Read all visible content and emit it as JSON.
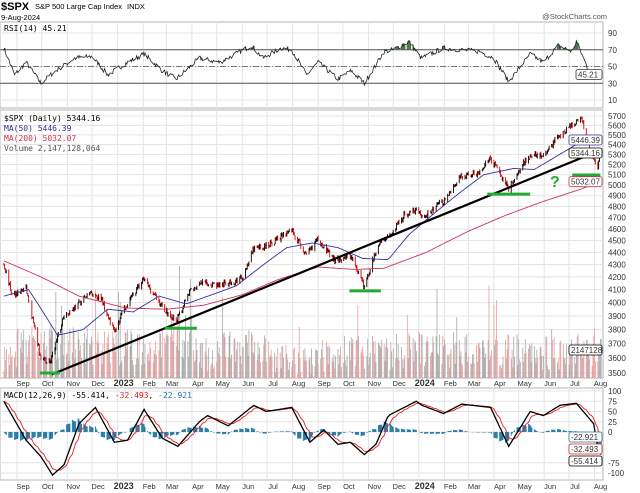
{
  "header": {
    "symbol": "$SPX",
    "name": "S&P 500 Large Cap Index",
    "exchange": "INDX",
    "date": "9-Aug-2024",
    "credit": "@StockCharts.com"
  },
  "colors": {
    "price_up": "#000000",
    "price_down": "#cc0000",
    "ma50": "#333399",
    "ma200": "#cc3355",
    "volume_up": "#a8a8a8",
    "volume_down": "#e8a0a0",
    "rsi_overbought_fill": "#4a7a4a",
    "macd": "#000000",
    "signal": "#e02020",
    "histogram": "#1f77a4",
    "annotation": "#22aa33",
    "trendline": "#000000"
  },
  "chart_data": [
    {
      "type": "line",
      "panel": "rsi",
      "legend": "RSI(14) 45.21",
      "last_value_tag": "45.21",
      "ylim": [
        0,
        100
      ],
      "y_ticks": [
        "90",
        "70",
        "50",
        "30",
        "10"
      ],
      "levels": [
        70,
        50,
        30
      ],
      "points": [
        [
          "2022-08-16",
          72
        ],
        [
          "2022-08-29",
          40
        ],
        [
          "2022-09-12",
          55
        ],
        [
          "2022-09-30",
          30
        ],
        [
          "2022-10-14",
          42
        ],
        [
          "2022-11-10",
          60
        ],
        [
          "2022-12-01",
          62
        ],
        [
          "2022-12-20",
          40
        ],
        [
          "2023-01-13",
          55
        ],
        [
          "2023-02-02",
          65
        ],
        [
          "2023-02-24",
          45
        ],
        [
          "2023-03-13",
          35
        ],
        [
          "2023-04-10",
          60
        ],
        [
          "2023-05-05",
          55
        ],
        [
          "2023-06-12",
          75
        ],
        [
          "2023-06-26",
          60
        ],
        [
          "2023-07-18",
          72
        ],
        [
          "2023-07-31",
          70
        ],
        [
          "2023-08-18",
          40
        ],
        [
          "2023-09-01",
          55
        ],
        [
          "2023-09-25",
          35
        ],
        [
          "2023-10-11",
          45
        ],
        [
          "2023-10-27",
          30
        ],
        [
          "2023-11-20",
          68
        ],
        [
          "2023-12-01",
          70
        ],
        [
          "2023-12-20",
          80
        ],
        [
          "2024-01-04",
          60
        ],
        [
          "2024-01-31",
          72
        ],
        [
          "2024-02-20",
          70
        ],
        [
          "2024-03-15",
          68
        ],
        [
          "2024-04-01",
          60
        ],
        [
          "2024-04-19",
          32
        ],
        [
          "2024-05-15",
          65
        ],
        [
          "2024-05-31",
          55
        ],
        [
          "2024-06-18",
          75
        ],
        [
          "2024-07-05",
          68
        ],
        [
          "2024-07-10",
          80
        ],
        [
          "2024-07-25",
          45
        ],
        [
          "2024-08-05",
          35
        ],
        [
          "2024-08-09",
          45.21
        ]
      ]
    },
    {
      "type": "candlestick",
      "panel": "price",
      "scale": "log",
      "legend": {
        "price": "$SPX (Daily) 5344.16",
        "ma50": "MA(50) 5446.39",
        "ma200": "MA(200) 5032.07",
        "volume": "Volume 2,147,128,064"
      },
      "tags": {
        "ma50": "5446.39",
        "price": "5344.16",
        "ma200": "5032.07",
        "volume": "2147128"
      },
      "ylim": [
        3500,
        5700
      ],
      "y_ticks": [
        "5700",
        "5600",
        "5500",
        "5400",
        "5300",
        "5200",
        "5100",
        "5000",
        "4900",
        "4800",
        "4700",
        "4600",
        "4500",
        "4400",
        "4300",
        "4200",
        "4100",
        "4000",
        "3900",
        "3800",
        "3700",
        "3600",
        "3500"
      ],
      "close": [
        [
          "2022-08-16",
          4305
        ],
        [
          "2022-08-26",
          4058
        ],
        [
          "2022-09-12",
          4110
        ],
        [
          "2022-09-30",
          3586
        ],
        [
          "2022-10-12",
          3577
        ],
        [
          "2022-10-28",
          3901
        ],
        [
          "2022-11-15",
          3992
        ],
        [
          "2022-11-30",
          4080
        ],
        [
          "2022-12-13",
          4019
        ],
        [
          "2022-12-28",
          3783
        ],
        [
          "2023-01-13",
          3999
        ],
        [
          "2023-02-02",
          4179
        ],
        [
          "2023-02-24",
          3970
        ],
        [
          "2023-03-13",
          3855
        ],
        [
          "2023-03-31",
          4109
        ],
        [
          "2023-04-18",
          4154
        ],
        [
          "2023-05-05",
          4136
        ],
        [
          "2023-05-31",
          4180
        ],
        [
          "2023-06-15",
          4426
        ],
        [
          "2023-06-30",
          4450
        ],
        [
          "2023-07-31",
          4589
        ],
        [
          "2023-08-18",
          4370
        ],
        [
          "2023-09-01",
          4516
        ],
        [
          "2023-09-21",
          4330
        ],
        [
          "2023-10-11",
          4376
        ],
        [
          "2023-10-27",
          4117
        ],
        [
          "2023-11-14",
          4496
        ],
        [
          "2023-11-30",
          4568
        ],
        [
          "2023-12-14",
          4720
        ],
        [
          "2023-12-29",
          4770
        ],
        [
          "2024-01-05",
          4697
        ],
        [
          "2024-01-31",
          4846
        ],
        [
          "2024-02-22",
          5087
        ],
        [
          "2024-03-15",
          5117
        ],
        [
          "2024-03-28",
          5254
        ],
        [
          "2024-04-19",
          4967
        ],
        [
          "2024-05-15",
          5308
        ],
        [
          "2024-05-31",
          5278
        ],
        [
          "2024-06-18",
          5487
        ],
        [
          "2024-07-16",
          5667
        ],
        [
          "2024-07-25",
          5399
        ],
        [
          "2024-08-05",
          5186
        ],
        [
          "2024-08-09",
          5344.16
        ]
      ],
      "ma50": [
        [
          "2022-08-16",
          4050
        ],
        [
          "2022-09-15",
          4100
        ],
        [
          "2022-10-20",
          3760
        ],
        [
          "2022-11-20",
          3800
        ],
        [
          "2022-12-20",
          3950
        ],
        [
          "2023-01-20",
          3930
        ],
        [
          "2023-02-20",
          4050
        ],
        [
          "2023-03-25",
          3990
        ],
        [
          "2023-04-25",
          4060
        ],
        [
          "2023-05-25",
          4130
        ],
        [
          "2023-06-25",
          4290
        ],
        [
          "2023-07-25",
          4440
        ],
        [
          "2023-08-25",
          4480
        ],
        [
          "2023-09-25",
          4440
        ],
        [
          "2023-10-25",
          4350
        ],
        [
          "2023-11-25",
          4340
        ],
        [
          "2023-12-20",
          4550
        ],
        [
          "2024-01-20",
          4740
        ],
        [
          "2024-02-20",
          4930
        ],
        [
          "2024-03-20",
          5100
        ],
        [
          "2024-04-25",
          5160
        ],
        [
          "2024-05-20",
          5150
        ],
        [
          "2024-06-20",
          5300
        ],
        [
          "2024-07-20",
          5450
        ],
        [
          "2024-08-09",
          5446.39
        ]
      ],
      "ma200": [
        [
          "2022-08-16",
          4330
        ],
        [
          "2022-09-30",
          4200
        ],
        [
          "2022-11-15",
          4050
        ],
        [
          "2023-01-10",
          3960
        ],
        [
          "2023-03-01",
          3950
        ],
        [
          "2023-04-15",
          3980
        ],
        [
          "2023-06-01",
          4060
        ],
        [
          "2023-07-15",
          4180
        ],
        [
          "2023-09-01",
          4280
        ],
        [
          "2023-10-15",
          4260
        ],
        [
          "2023-11-20",
          4270
        ],
        [
          "2024-01-10",
          4400
        ],
        [
          "2024-03-01",
          4580
        ],
        [
          "2024-04-15",
          4720
        ],
        [
          "2024-06-01",
          4850
        ],
        [
          "2024-07-15",
          4960
        ],
        [
          "2024-08-09",
          5032.07
        ]
      ],
      "volume_monthly_avg_billions": [
        [
          "2022-08",
          3.6
        ],
        [
          "2022-09",
          4.3
        ],
        [
          "2022-10",
          4.6
        ],
        [
          "2022-11",
          4.3
        ],
        [
          "2022-12",
          4.2
        ],
        [
          "2023-01",
          4.2
        ],
        [
          "2023-02",
          4.3
        ],
        [
          "2023-03",
          4.8
        ],
        [
          "2023-04",
          3.8
        ],
        [
          "2023-05",
          4.1
        ],
        [
          "2023-06",
          4.2
        ],
        [
          "2023-07",
          3.7
        ],
        [
          "2023-08",
          3.6
        ],
        [
          "2023-09",
          3.8
        ],
        [
          "2023-10",
          3.9
        ],
        [
          "2023-11",
          3.9
        ],
        [
          "2023-12",
          4.0
        ],
        [
          "2024-01",
          4.1
        ],
        [
          "2024-02",
          4.1
        ],
        [
          "2024-03",
          4.2
        ],
        [
          "2024-04",
          4.0
        ],
        [
          "2024-05",
          3.8
        ],
        [
          "2024-06",
          3.9
        ],
        [
          "2024-07",
          4.1
        ],
        [
          "2024-08",
          4.4
        ]
      ],
      "trendline": [
        [
          "2022-10-13",
          3490
        ],
        [
          "2024-08-09",
          5345
        ]
      ],
      "support_marks": [
        [
          "2022-09-29",
          "2022-10-23",
          3500
        ],
        [
          "2023-02-27",
          "2023-04-07",
          3810
        ],
        [
          "2023-10-09",
          "2023-11-16",
          4090
        ],
        [
          "2024-03-24",
          "2024-05-15",
          4915
        ],
        [
          "2024-07-05",
          "2024-08-08",
          5096
        ]
      ],
      "annotation_text": "?"
    },
    {
      "type": "line",
      "panel": "macd",
      "legend": {
        "label": "MACD(12,26,9)",
        "macd": "-55.414",
        "signal": "-32.493",
        "histogram": "-22.921"
      },
      "ylim": [
        -110,
        110
      ],
      "y_ticks": [
        "100",
        "75",
        "50",
        "25",
        "0",
        "-75",
        "-100"
      ],
      "macd": [
        [
          "2022-08-16",
          75
        ],
        [
          "2022-09-12",
          -20
        ],
        [
          "2022-09-30",
          -60
        ],
        [
          "2022-10-14",
          -105
        ],
        [
          "2022-10-28",
          -80
        ],
        [
          "2022-11-15",
          20
        ],
        [
          "2022-12-05",
          60
        ],
        [
          "2022-12-28",
          -25
        ],
        [
          "2023-01-13",
          -20
        ],
        [
          "2023-02-02",
          55
        ],
        [
          "2023-02-24",
          -15
        ],
        [
          "2023-03-15",
          -35
        ],
        [
          "2023-04-10",
          25
        ],
        [
          "2023-04-20",
          40
        ],
        [
          "2023-05-15",
          15
        ],
        [
          "2023-06-15",
          65
        ],
        [
          "2023-06-30",
          50
        ],
        [
          "2023-07-31",
          60
        ],
        [
          "2023-08-22",
          -25
        ],
        [
          "2023-09-08",
          5
        ],
        [
          "2023-09-25",
          -30
        ],
        [
          "2023-10-10",
          -25
        ],
        [
          "2023-10-27",
          -55
        ],
        [
          "2023-11-10",
          -30
        ],
        [
          "2023-11-25",
          40
        ],
        [
          "2023-12-29",
          75
        ],
        [
          "2024-01-05",
          65
        ],
        [
          "2024-01-31",
          45
        ],
        [
          "2024-02-22",
          68
        ],
        [
          "2024-03-28",
          60
        ],
        [
          "2024-04-19",
          -35
        ],
        [
          "2024-05-15",
          50
        ],
        [
          "2024-05-31",
          40
        ],
        [
          "2024-06-20",
          65
        ],
        [
          "2024-07-10",
          70
        ],
        [
          "2024-07-31",
          20
        ],
        [
          "2024-08-05",
          -40
        ],
        [
          "2024-08-09",
          -55.414
        ]
      ]
    }
  ],
  "x_axis": {
    "months": [
      [
        "2022-09-01",
        "Sep"
      ],
      [
        "2022-10-01",
        "Oct"
      ],
      [
        "2022-11-01",
        "Nov"
      ],
      [
        "2022-12-01",
        "Dec"
      ],
      [
        "2023-01-01",
        "2023"
      ],
      [
        "2023-02-01",
        "Feb"
      ],
      [
        "2023-03-01",
        "Mar"
      ],
      [
        "2023-04-01",
        "Apr"
      ],
      [
        "2023-05-01",
        "May"
      ],
      [
        "2023-06-01",
        "Jun"
      ],
      [
        "2023-07-01",
        "Jul"
      ],
      [
        "2023-08-01",
        "Aug"
      ],
      [
        "2023-09-01",
        "Sep"
      ],
      [
        "2023-10-01",
        "Oct"
      ],
      [
        "2023-11-01",
        "Nov"
      ],
      [
        "2023-12-01",
        "Dec"
      ],
      [
        "2024-01-01",
        "2024"
      ],
      [
        "2024-02-01",
        "Feb"
      ],
      [
        "2024-03-01",
        "Mar"
      ],
      [
        "2024-04-01",
        "Apr"
      ],
      [
        "2024-05-01",
        "May"
      ],
      [
        "2024-06-01",
        "Jun"
      ],
      [
        "2024-07-01",
        "Jul"
      ],
      [
        "2024-08-01",
        "Aug"
      ]
    ]
  }
}
